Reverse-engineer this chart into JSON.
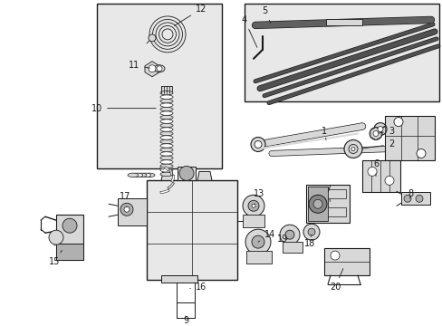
{
  "bg_color": "#ffffff",
  "line_color": "#1a1a1a",
  "gray_fill": "#d8d8d8",
  "light_gray": "#e8e8e8",
  "mid_gray": "#b0b0b0",
  "dark_gray": "#888888",
  "figsize": [
    4.89,
    3.6
  ],
  "dpi": 100
}
